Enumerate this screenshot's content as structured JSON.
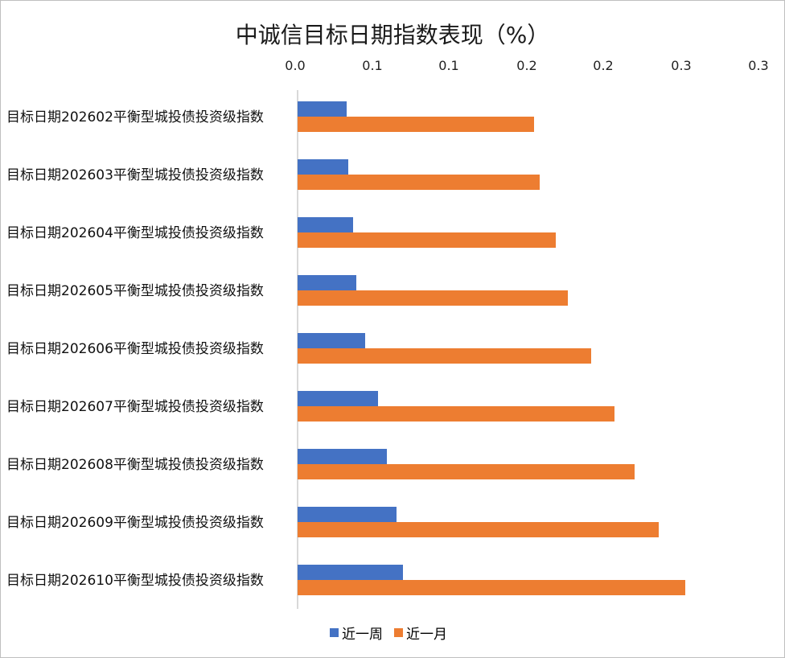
{
  "chart_data": {
    "type": "bar",
    "orientation": "horizontal",
    "title": "中诚信目标日期指数表现（%）",
    "xlabel": "",
    "ylabel": "",
    "x_axis_position": "top",
    "xlim": [
      0,
      0.3
    ],
    "x_tick_labels": [
      "0.0",
      "0.1",
      "0.1",
      "0.2",
      "0.2",
      "0.3",
      "0.3"
    ],
    "grid": false,
    "legend_position": "bottom",
    "categories": [
      "目标日期202602平衡型城投债投资级指数",
      "目标日期202603平衡型城投债投资级指数",
      "目标日期202604平衡型城投债投资级指数",
      "目标日期202605平衡型城投债投资级指数",
      "目标日期202606平衡型城投债投资级指数",
      "目标日期202607平衡型城投债投资级指数",
      "目标日期202608平衡型城投债投资级指数",
      "目标日期202609平衡型城投债投资级指数",
      "目标日期202610平衡型城投债投资级指数"
    ],
    "series": [
      {
        "name": "近一周",
        "color": "#4472c4",
        "values": [
          0.032,
          0.033,
          0.036,
          0.038,
          0.044,
          0.052,
          0.058,
          0.064,
          0.068
        ]
      },
      {
        "name": "近一月",
        "color": "#ed7d31",
        "values": [
          0.153,
          0.157,
          0.167,
          0.175,
          0.19,
          0.205,
          0.218,
          0.234,
          0.251
        ]
      }
    ]
  },
  "legend": {
    "week": "近一周",
    "month": "近一月"
  }
}
